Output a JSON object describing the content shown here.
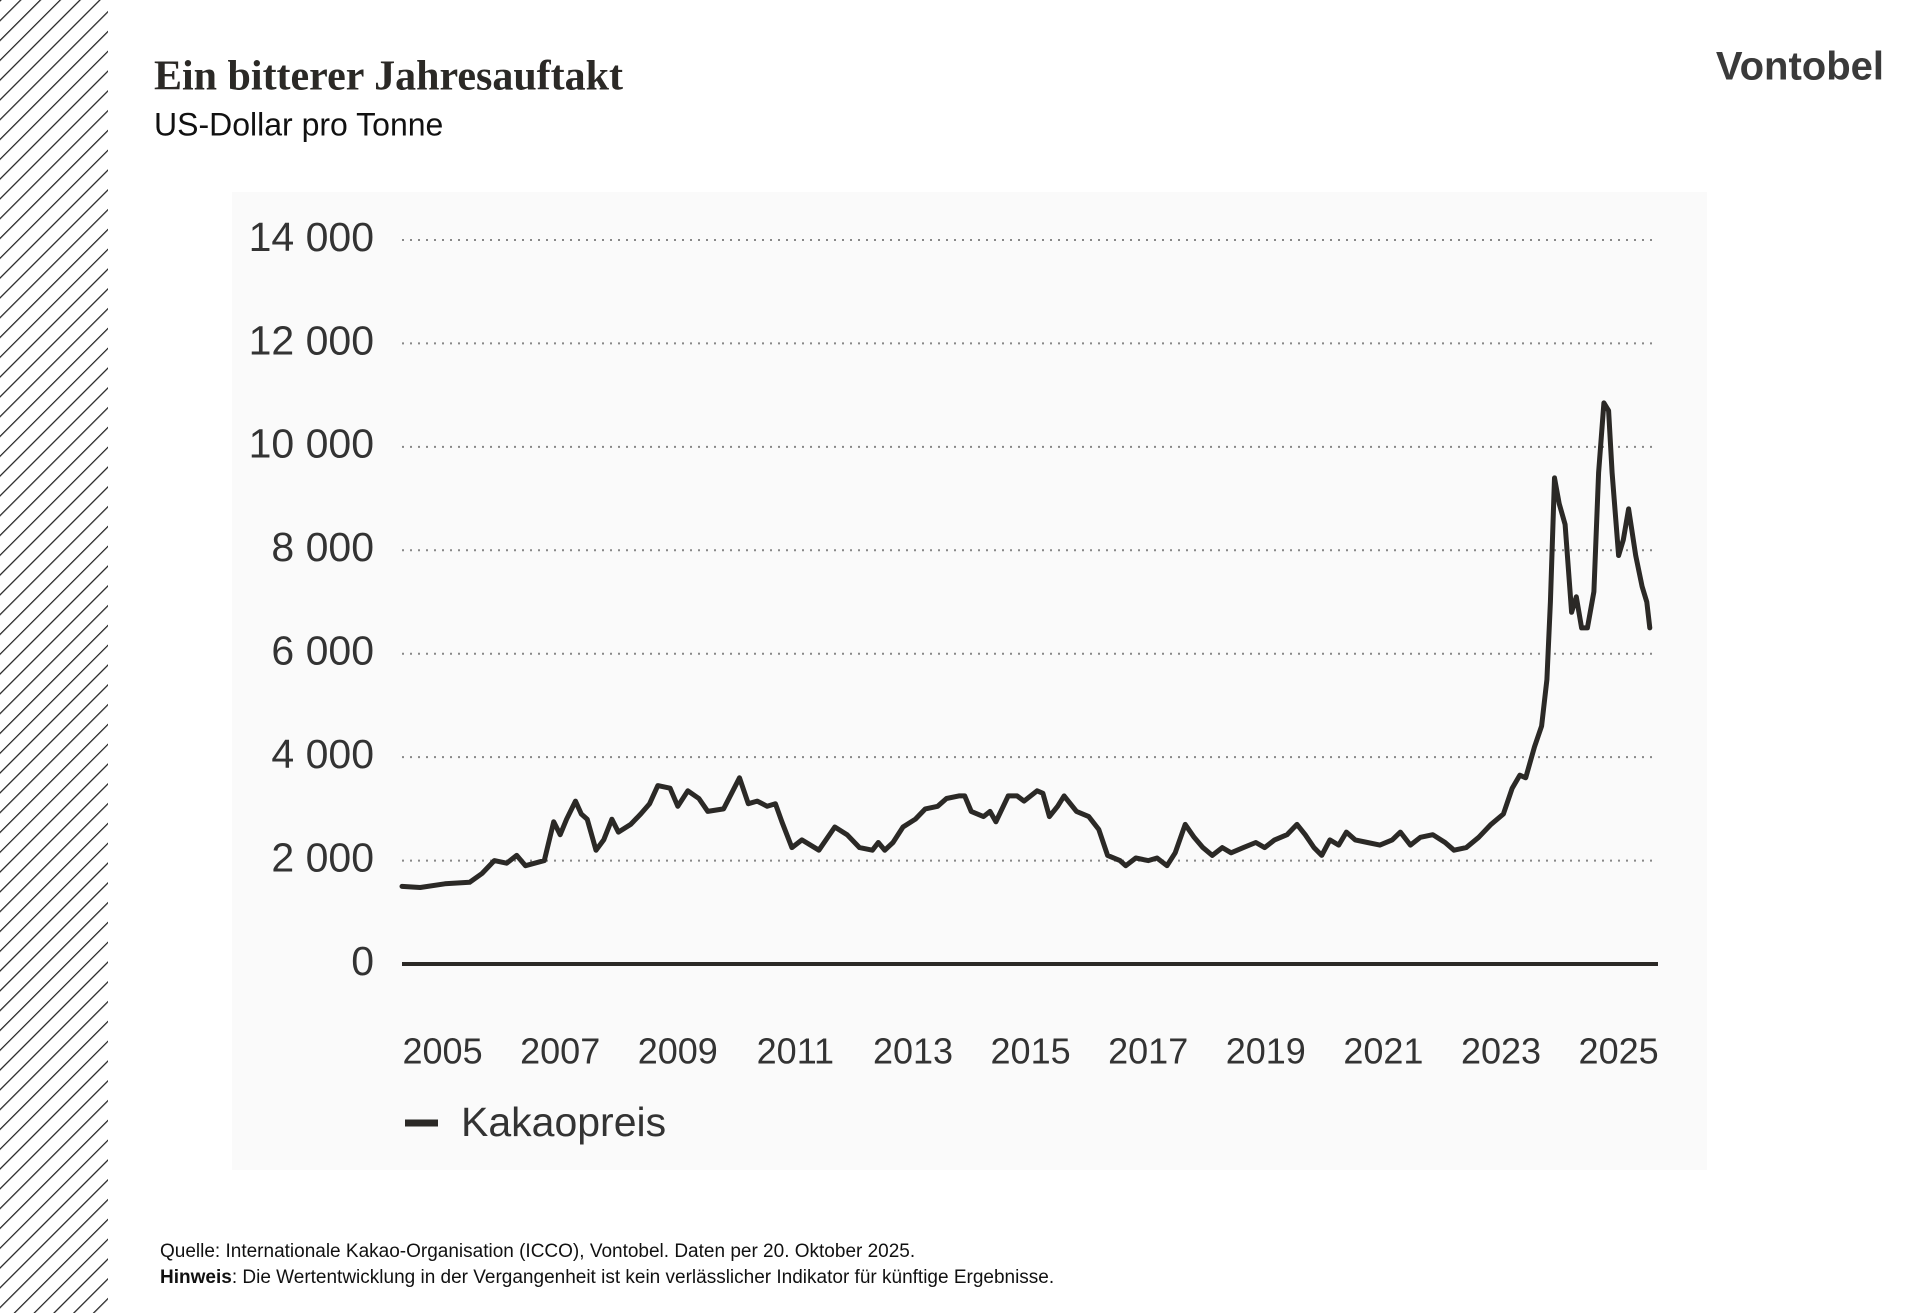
{
  "logo": "Vontobel",
  "chart_data": {
    "type": "line",
    "title": "Ein bitterer Jahresauftakt",
    "subtitle": "US-Dollar pro Tonne",
    "x": [
      2004.31,
      2004.62,
      2005.04,
      2005.46,
      2005.67,
      2005.88,
      2006.09,
      2006.26,
      2006.41,
      2006.73,
      2006.89,
      2007.0,
      2007.11,
      2007.26,
      2007.36,
      2007.46,
      2007.61,
      2007.74,
      2007.88,
      2007.99,
      2008.2,
      2008.37,
      2008.52,
      2008.66,
      2008.87,
      2009.0,
      2009.17,
      2009.36,
      2009.51,
      2009.78,
      2010.05,
      2010.2,
      2010.35,
      2010.52,
      2010.66,
      2010.77,
      2010.94,
      2011.11,
      2011.4,
      2011.67,
      2011.88,
      2012.09,
      2012.31,
      2012.41,
      2012.52,
      2012.66,
      2012.83,
      2013.04,
      2013.21,
      2013.42,
      2013.57,
      2013.78,
      2013.88,
      2013.99,
      2014.2,
      2014.31,
      2014.41,
      2014.62,
      2014.77,
      2014.89,
      2015.11,
      2015.21,
      2015.32,
      2015.46,
      2015.57,
      2015.78,
      2015.99,
      2016.16,
      2016.31,
      2016.52,
      2016.62,
      2016.79,
      2017.0,
      2017.15,
      2017.32,
      2017.46,
      2017.63,
      2017.78,
      2017.93,
      2018.09,
      2018.26,
      2018.41,
      2018.62,
      2018.83,
      2018.98,
      2019.15,
      2019.36,
      2019.53,
      2019.67,
      2019.82,
      2019.95,
      2020.09,
      2020.24,
      2020.37,
      2020.52,
      2020.73,
      2020.94,
      2021.15,
      2021.29,
      2021.46,
      2021.63,
      2021.84,
      2022.05,
      2022.2,
      2022.41,
      2022.62,
      2022.83,
      2023.04,
      2023.19,
      2023.32,
      2023.42,
      2023.57,
      2023.69,
      2023.78,
      2023.84,
      2023.91,
      2023.99,
      2024.09,
      2024.2,
      2024.28,
      2024.37,
      2024.47,
      2024.58,
      2024.66,
      2024.75,
      2024.83,
      2024.89,
      2025.0,
      2025.08,
      2025.17,
      2025.29,
      2025.4,
      2025.48,
      2025.53
    ],
    "series": [
      {
        "name": "Kakaopreis",
        "color": "#2b2926",
        "values": [
          1500,
          1480,
          1550,
          1580,
          1750,
          2000,
          1950,
          2100,
          1900,
          2000,
          2750,
          2500,
          2800,
          3150,
          2900,
          2800,
          2200,
          2400,
          2800,
          2550,
          2700,
          2900,
          3100,
          3450,
          3400,
          3050,
          3350,
          3200,
          2950,
          3000,
          3600,
          3100,
          3150,
          3050,
          3100,
          2750,
          2250,
          2400,
          2200,
          2650,
          2500,
          2250,
          2200,
          2350,
          2200,
          2350,
          2650,
          2800,
          3000,
          3050,
          3200,
          3250,
          3250,
          2950,
          2850,
          2950,
          2750,
          3250,
          3250,
          3150,
          3350,
          3300,
          2850,
          3050,
          3250,
          2950,
          2850,
          2600,
          2100,
          2000,
          1900,
          2050,
          2000,
          2050,
          1900,
          2150,
          2700,
          2450,
          2250,
          2100,
          2250,
          2150,
          2250,
          2350,
          2250,
          2400,
          2500,
          2700,
          2500,
          2250,
          2100,
          2400,
          2300,
          2550,
          2400,
          2350,
          2300,
          2400,
          2550,
          2300,
          2450,
          2500,
          2350,
          2200,
          2250,
          2450,
          2700,
          2900,
          3400,
          3650,
          3600,
          4200,
          4600,
          5500,
          7000,
          9400,
          8900,
          8500,
          6800,
          7100,
          6500,
          6500,
          7200,
          9500,
          10850,
          10700,
          9500,
          7900,
          8200,
          8800,
          7900,
          7300,
          7000,
          6500
        ]
      }
    ],
    "xlim": [
      2004.31,
      2025.67
    ],
    "xticks": [
      2005,
      2007,
      2009,
      2011,
      2013,
      2015,
      2017,
      2019,
      2021,
      2023,
      2025
    ],
    "ylim": [
      0,
      14000
    ],
    "yticks": [
      0,
      {
        "value": 2000,
        "label": "2 000"
      },
      {
        "value": 4000,
        "label": "4 000"
      },
      {
        "value": 6000,
        "label": "6 000"
      },
      {
        "value": 8000,
        "label": "8 000"
      },
      {
        "value": 10000,
        "label": "10 000"
      },
      {
        "value": 12000,
        "label": "12 000"
      },
      {
        "value": 14000,
        "label": "14 000"
      }
    ],
    "grid": true,
    "legend": "bottom-left"
  },
  "footer": {
    "source": "Quelle: Internationale Kakao-Organisation (ICCO), Vontobel. Daten per 20. Oktober 2025.",
    "note_label": "Hinweis",
    "note_text": ": Die Wertentwicklung in der Vergangenheit ist kein verlässlicher Indikator für künftige Ergebnisse."
  }
}
